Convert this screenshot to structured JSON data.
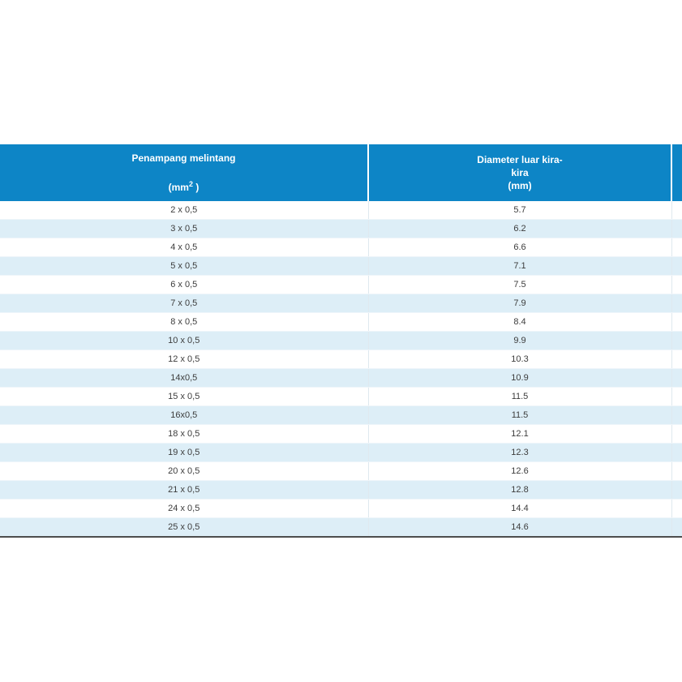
{
  "page": {
    "background_color": "#ffffff"
  },
  "table": {
    "colors": {
      "header_bg": "#0d85c6",
      "header_text": "#ffffff",
      "row_bg": "#ffffff",
      "row_alt_bg": "#ddeef7",
      "body_text": "#3c3c3c",
      "bottom_border": "#4d4d4d"
    },
    "header": {
      "col1_title": "Penampang melintang",
      "col1_unit_open": "(mm",
      "col1_unit_sup": "2",
      "col1_unit_close": " )",
      "col2_line1": "Diameter luar kira-",
      "col2_line2": "kira",
      "col2_line3": "(mm)"
    },
    "rows": [
      {
        "penampang": "2 x 0,5",
        "diameter": "5.7"
      },
      {
        "penampang": "3 x 0,5",
        "diameter": "6.2"
      },
      {
        "penampang": "4 x 0,5",
        "diameter": "6.6"
      },
      {
        "penampang": "5 x 0,5",
        "diameter": "7.1"
      },
      {
        "penampang": "6 x 0,5",
        "diameter": "7.5"
      },
      {
        "penampang": "7 x 0,5",
        "diameter": "7.9"
      },
      {
        "penampang": "8 x 0,5",
        "diameter": "8.4"
      },
      {
        "penampang": "10 x 0,5",
        "diameter": "9.9"
      },
      {
        "penampang": "12 x 0,5",
        "diameter": "10.3"
      },
      {
        "penampang": "14x0,5",
        "diameter": "10.9"
      },
      {
        "penampang": "15 x 0,5",
        "diameter": "11.5"
      },
      {
        "penampang": "16x0,5",
        "diameter": "11.5"
      },
      {
        "penampang": "18 x 0,5",
        "diameter": "12.1"
      },
      {
        "penampang": "19 x 0,5",
        "diameter": "12.3"
      },
      {
        "penampang": "20 x 0,5",
        "diameter": "12.6"
      },
      {
        "penampang": "21 x 0,5",
        "diameter": "12.8"
      },
      {
        "penampang": "24 x 0,5",
        "diameter": "14.4"
      },
      {
        "penampang": "25 x 0,5",
        "diameter": "14.6"
      }
    ]
  },
  "chart_data": {
    "type": "table",
    "title": "",
    "columns": [
      "Penampang melintang (mm2)",
      "Diameter luar kira-kira (mm)"
    ],
    "rows": [
      [
        "2 x 0,5",
        5.7
      ],
      [
        "3 x 0,5",
        6.2
      ],
      [
        "4 x 0,5",
        6.6
      ],
      [
        "5 x 0,5",
        7.1
      ],
      [
        "6 x 0,5",
        7.5
      ],
      [
        "7 x 0,5",
        7.9
      ],
      [
        "8 x 0,5",
        8.4
      ],
      [
        "10 x 0,5",
        9.9
      ],
      [
        "12 x 0,5",
        10.3
      ],
      [
        "14x0,5",
        10.9
      ],
      [
        "15 x 0,5",
        11.5
      ],
      [
        "16x0,5",
        11.5
      ],
      [
        "18 x 0,5",
        12.1
      ],
      [
        "19 x 0,5",
        12.3
      ],
      [
        "20 x 0,5",
        12.6
      ],
      [
        "21 x 0,5",
        12.8
      ],
      [
        "24 x 0,5",
        14.4
      ],
      [
        "25 x 0,5",
        14.6
      ]
    ],
    "layout": {
      "grid": false,
      "zebra_striping": true,
      "header_position": "top"
    }
  }
}
